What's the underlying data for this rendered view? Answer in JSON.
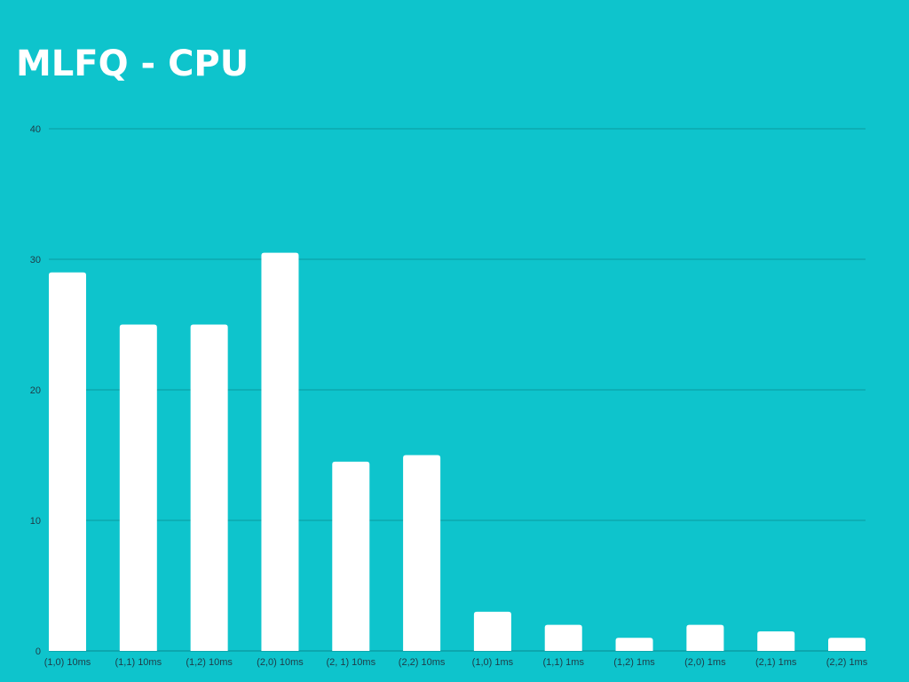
{
  "chart_data": {
    "type": "bar",
    "title": "MLFQ - CPU",
    "xlabel": "",
    "ylabel": "",
    "categories": [
      "(1,0) 10ms",
      "(1,1) 10ms",
      "(1,2) 10ms",
      "(2,0) 10ms",
      "(2, 1) 10ms",
      "(2,2) 10ms",
      "(1,0) 1ms",
      "(1,1) 1ms",
      "(1,2) 1ms",
      "(2,0) 1ms",
      "(2,1) 1ms",
      "(2,2) 1ms"
    ],
    "values": [
      29,
      25,
      25,
      30.5,
      14.5,
      15,
      3,
      2,
      1,
      2,
      1.5,
      1
    ],
    "ylim": [
      0,
      40
    ],
    "yticks": [
      0,
      10,
      20,
      30,
      40
    ],
    "grid": true,
    "colors": {
      "background": "#0ec4cc",
      "bar": "#ffffff",
      "grid": "#0a9aa0",
      "tick_text": "#1f3b47",
      "title": "#ffffff"
    }
  }
}
